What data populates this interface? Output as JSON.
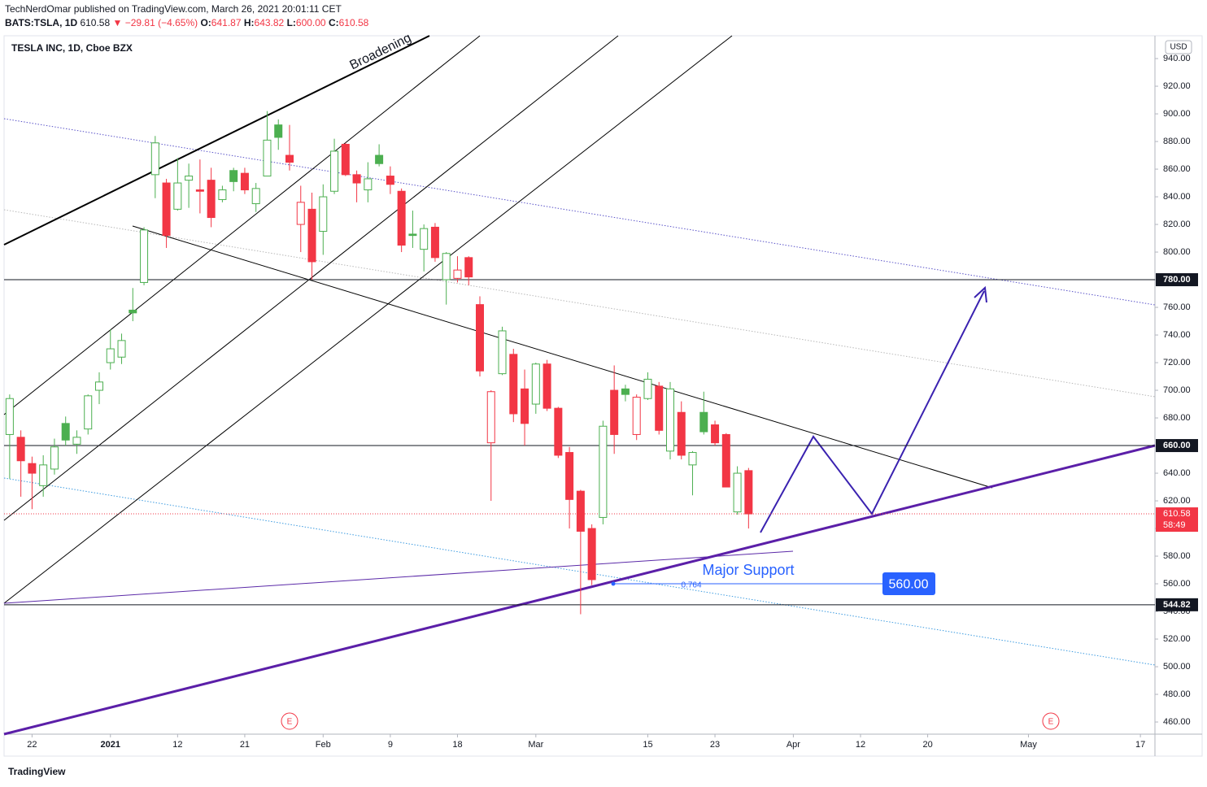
{
  "header": {
    "author_line": "TechNerdOmar published on TradingView.com, March 26, 2021 20:01:11 CET",
    "symbol": "BATS:TSLA, 1D",
    "last": "610.58",
    "change": "▼ −29.81 (−4.65%)",
    "ohlc": [
      {
        "label": "O:",
        "value": "641.87"
      },
      {
        "label": "H:",
        "value": "643.82"
      },
      {
        "label": "L:",
        "value": "600.00"
      },
      {
        "label": "C:",
        "value": "610.58"
      }
    ]
  },
  "footer": {
    "brand": "TradingView"
  },
  "chart_data": {
    "type": "candlestick",
    "title": "TESLA INC, 1D, Cboe BZX",
    "currency": "USD",
    "colors": {
      "up": "#4caf50",
      "down": "#f23645"
    },
    "grid": false,
    "x": [
      0,
      1,
      2,
      3,
      4,
      5,
      6,
      7,
      8,
      9,
      10,
      11,
      12,
      13,
      14,
      15,
      16,
      17,
      18,
      19,
      20,
      21,
      22,
      23,
      24,
      25,
      26,
      27,
      28,
      29,
      30,
      31,
      32,
      33,
      34,
      35,
      36,
      37,
      38,
      39,
      40,
      41,
      42,
      43,
      44,
      45,
      46,
      47,
      48,
      49,
      50,
      51,
      52,
      53,
      54,
      55,
      56,
      57,
      58,
      59,
      60,
      61,
      62,
      63,
      64,
      65,
      66
    ],
    "open": [
      668,
      666,
      647,
      631,
      643,
      676,
      661,
      672,
      700,
      720,
      724,
      758,
      778,
      856,
      850,
      831,
      852,
      845,
      852,
      838,
      859,
      857,
      835,
      855,
      892,
      870,
      820,
      831,
      815,
      844,
      878,
      856,
      845,
      870,
      855,
      844,
      813,
      802,
      818,
      780,
      781,
      796,
      762,
      662,
      712,
      726,
      701,
      690,
      719,
      687,
      655,
      627,
      600,
      608,
      700,
      701,
      668,
      694,
      703,
      656,
      684,
      646,
      684,
      675,
      668,
      612,
      641.87
    ],
    "high": [
      697,
      671,
      652,
      653,
      665,
      681,
      671,
      697,
      713,
      744,
      741,
      774,
      818,
      884,
      853,
      868,
      864,
      867,
      861,
      848,
      861,
      861,
      850,
      902,
      896,
      892,
      848,
      843,
      849,
      882,
      879,
      859,
      865,
      878,
      862,
      846,
      830,
      820,
      821,
      800,
      797,
      797,
      768,
      700,
      746,
      730,
      715,
      720,
      722,
      688,
      659,
      628,
      603,
      678,
      718,
      704,
      697,
      713,
      706,
      706,
      692,
      656,
      699,
      678,
      669,
      645,
      643.82
    ],
    "low": [
      636,
      623,
      614,
      623,
      639,
      660,
      654,
      668,
      690,
      715,
      719,
      750,
      776,
      839,
      803,
      830,
      832,
      828,
      818,
      836,
      844,
      842,
      829,
      855,
      874,
      859,
      800,
      780,
      798,
      842,
      855,
      836,
      836,
      862,
      842,
      800,
      803,
      786,
      793,
      762,
      778,
      776,
      710,
      620,
      711,
      677,
      660,
      683,
      685,
      651,
      600,
      538,
      559,
      603,
      654,
      692,
      664,
      693,
      668,
      650,
      650,
      624,
      668,
      660,
      630,
      610,
      600
    ],
    "close": [
      694,
      649,
      640,
      646,
      659,
      664,
      666,
      696,
      706,
      730,
      736,
      756,
      816,
      879,
      812,
      850,
      855,
      844,
      825,
      845,
      851,
      845,
      846,
      881,
      883,
      865,
      836,
      793,
      840,
      873,
      856,
      850,
      853,
      864,
      849,
      805,
      812,
      817,
      796,
      799,
      787,
      782,
      714,
      699,
      743,
      683,
      676,
      719,
      687,
      653,
      621,
      598,
      563,
      674,
      668,
      697,
      695,
      708,
      671,
      701,
      653,
      655,
      670,
      662,
      630,
      640,
      610.58
    ],
    "xlim": [
      -0.5,
      102.3
    ],
    "xticks": [
      {
        "value": 2,
        "label": "22"
      },
      {
        "value": 9,
        "label": "2021"
      },
      {
        "value": 15,
        "label": "12"
      },
      {
        "value": 21,
        "label": "21"
      },
      {
        "value": 28,
        "label": "Feb"
      },
      {
        "value": 34,
        "label": "9"
      },
      {
        "value": 40,
        "label": "18"
      },
      {
        "value": 47,
        "label": "Mar"
      },
      {
        "value": 57,
        "label": "15"
      },
      {
        "value": 63,
        "label": "23"
      },
      {
        "value": 70,
        "label": "Apr"
      },
      {
        "value": 76,
        "label": "12"
      },
      {
        "value": 82,
        "label": "20"
      },
      {
        "value": 91,
        "label": "May"
      },
      {
        "value": 101,
        "label": "17"
      }
    ],
    "ylim": [
      451.2,
      956.5
    ],
    "yticks": [
      {
        "value": 460,
        "label": "460.00"
      },
      {
        "value": 480,
        "label": "480.00"
      },
      {
        "value": 500,
        "label": "500.00"
      },
      {
        "value": 520,
        "label": "520.00"
      },
      {
        "value": 540,
        "label": "540.00"
      },
      {
        "value": 560,
        "label": "560.00"
      },
      {
        "value": 580,
        "label": "580.00"
      },
      {
        "value": 600,
        "label": "600.00"
      },
      {
        "value": 620,
        "label": "620.00"
      },
      {
        "value": 640,
        "label": "640.00"
      },
      {
        "value": 660,
        "label": "660.00"
      },
      {
        "value": 680,
        "label": "680.00"
      },
      {
        "value": 700,
        "label": "700.00"
      },
      {
        "value": 720,
        "label": "720.00"
      },
      {
        "value": 740,
        "label": "740.00"
      },
      {
        "value": 760,
        "label": "760.00"
      },
      {
        "value": 780,
        "label": "780.00"
      },
      {
        "value": 800,
        "label": "800.00"
      },
      {
        "value": 820,
        "label": "820.00"
      },
      {
        "value": 840,
        "label": "840.00"
      },
      {
        "value": 860,
        "label": "860.00"
      },
      {
        "value": 880,
        "label": "880.00"
      },
      {
        "value": 900,
        "label": "900.00"
      },
      {
        "value": 920,
        "label": "920.00"
      },
      {
        "value": 940,
        "label": "940.00"
      }
    ],
    "levels": [
      {
        "value": 780,
        "label": "780.00"
      },
      {
        "value": 660,
        "label": "660.00"
      },
      {
        "value": 544.82,
        "label": "544.82"
      }
    ],
    "last_price": {
      "value": 610.58,
      "label": "610.58",
      "countdown": "58:49"
    },
    "events": [
      {
        "x": 25,
        "label": "E"
      },
      {
        "x": 93,
        "label": "E"
      }
    ],
    "annotations": {
      "pattern": "Broadening",
      "support": "Major Support",
      "fib": "0.764",
      "target": {
        "value": 560,
        "label": "560.00"
      }
    }
  }
}
